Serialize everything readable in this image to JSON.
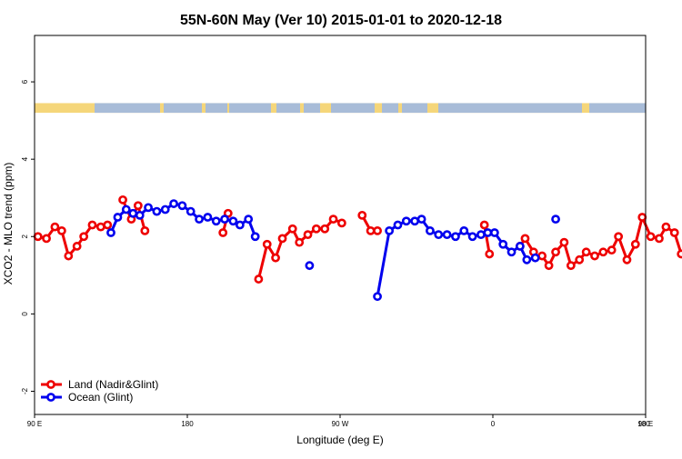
{
  "chart_data": {
    "type": "line",
    "title": "55N-60N May (Ver 10)   2015-01-01 to 2020-12-18",
    "xlabel": "Longitude (deg E)",
    "ylabel": "XCO2 - MLO trend (ppm)",
    "xlim": [
      90,
      450
    ],
    "ylim": [
      -2.6,
      7.2
    ],
    "x_ticks": [
      {
        "value": 90,
        "label": "90 E"
      },
      {
        "value": 180,
        "label": "180"
      },
      {
        "value": 270,
        "label": "90 W"
      },
      {
        "value": 360,
        "label": "0"
      },
      {
        "value": 450,
        "label": "90 E"
      }
    ],
    "x_ticks_top": [
      {
        "value": 450,
        "label": "180"
      }
    ],
    "y_ticks": [
      {
        "value": -2,
        "label": "-2"
      },
      {
        "value": 0,
        "label": "0"
      },
      {
        "value": 2,
        "label": "2"
      },
      {
        "value": 4,
        "label": "4"
      },
      {
        "value": 6,
        "label": "6"
      }
    ],
    "land_ocean_strip": {
      "y_range": [
        5.2,
        5.45
      ],
      "land_color": "#f5d67a",
      "ocean_color": "#a8bcd8"
    },
    "legend_position": "bottom-left",
    "grid": false,
    "series": [
      {
        "name": "Land (Nadir&Glint)",
        "color": "#ee0000",
        "points": [
          [
            92,
            2.0
          ],
          [
            97,
            1.95
          ],
          [
            102,
            2.25
          ],
          [
            106,
            2.15
          ],
          [
            110,
            1.5
          ],
          [
            115,
            1.75
          ],
          [
            119,
            2.0
          ],
          [
            124,
            2.3
          ],
          [
            129,
            2.25
          ],
          [
            133,
            2.3
          ],
          [
            null,
            null
          ],
          [
            142,
            2.95
          ],
          [
            147,
            2.45
          ],
          [
            151,
            2.8
          ],
          [
            155,
            2.15
          ],
          [
            null,
            null
          ],
          [
            201,
            2.1
          ],
          [
            204,
            2.6
          ],
          [
            null,
            null
          ],
          [
            222,
            0.9
          ],
          [
            227,
            1.8
          ],
          [
            232,
            1.45
          ],
          [
            236,
            1.95
          ],
          [
            242,
            2.2
          ],
          [
            246,
            1.85
          ],
          [
            251,
            2.05
          ],
          [
            256,
            2.2
          ],
          [
            261,
            2.2
          ],
          [
            266,
            2.45
          ],
          [
            271,
            2.35
          ],
          [
            null,
            null
          ],
          [
            283,
            2.55
          ],
          [
            288,
            2.15
          ],
          [
            292,
            2.15
          ],
          [
            null,
            null
          ],
          [
            355,
            2.3
          ],
          [
            358,
            1.55
          ],
          [
            null,
            null
          ],
          [
            376,
            1.75
          ],
          [
            379,
            1.95
          ],
          [
            384,
            1.6
          ],
          [
            null,
            null
          ],
          [
            389,
            1.5
          ],
          [
            393,
            1.25
          ],
          [
            397,
            1.6
          ],
          [
            402,
            1.85
          ],
          [
            406,
            1.25
          ],
          [
            411,
            1.4
          ],
          [
            415,
            1.6
          ],
          [
            420,
            1.5
          ],
          [
            425,
            1.6
          ],
          [
            430,
            1.65
          ],
          [
            434,
            2.0
          ],
          [
            439,
            1.4
          ],
          [
            444,
            1.8
          ],
          [
            448,
            2.5
          ],
          [
            453,
            2.0
          ],
          [
            458,
            1.95
          ],
          [
            462,
            2.25
          ],
          [
            467,
            2.1
          ],
          [
            471,
            1.55
          ],
          [
            476,
            1.75
          ],
          [
            480,
            2.0
          ],
          [
            485,
            2.25
          ],
          [
            490,
            2.25
          ],
          [
            494,
            2.35
          ],
          [
            null,
            null
          ],
          [
            504,
            2.95
          ],
          [
            508,
            2.45
          ],
          [
            513,
            2.8
          ],
          [
            517,
            2.15
          ]
        ]
      },
      {
        "name": "Ocean (Glint)",
        "color": "#0000ee",
        "points": [
          [
            135,
            2.1
          ],
          [
            139,
            2.5
          ],
          [
            144,
            2.7
          ],
          [
            148,
            2.6
          ],
          [
            152,
            2.55
          ],
          [
            157,
            2.75
          ],
          [
            162,
            2.65
          ],
          [
            167,
            2.7
          ],
          [
            172,
            2.85
          ],
          [
            177,
            2.8
          ],
          [
            182,
            2.65
          ],
          [
            187,
            2.45
          ],
          [
            192,
            2.5
          ],
          [
            197,
            2.4
          ],
          [
            202,
            2.45
          ],
          [
            207,
            2.4
          ],
          [
            211,
            2.3
          ],
          [
            216,
            2.45
          ],
          [
            220,
            2.0
          ],
          [
            null,
            null
          ],
          [
            252,
            1.25
          ],
          [
            null,
            null
          ],
          [
            292,
            0.45
          ],
          [
            299,
            2.15
          ],
          [
            304,
            2.3
          ],
          [
            309,
            2.4
          ],
          [
            314,
            2.4
          ],
          [
            318,
            2.45
          ],
          [
            323,
            2.15
          ],
          [
            328,
            2.05
          ],
          [
            333,
            2.05
          ],
          [
            338,
            2.0
          ],
          [
            343,
            2.15
          ],
          [
            348,
            2.0
          ],
          [
            353,
            2.05
          ],
          [
            357,
            2.1
          ],
          [
            361,
            2.1
          ],
          [
            366,
            1.8
          ],
          [
            371,
            1.6
          ],
          [
            376,
            1.75
          ],
          [
            380,
            1.4
          ],
          [
            385,
            1.45
          ],
          [
            null,
            null
          ],
          [
            397,
            2.45
          ],
          [
            null,
            null
          ],
          [
            496,
            2.15
          ],
          [
            501,
            2.5
          ],
          [
            506,
            2.7
          ],
          [
            511,
            2.6
          ],
          [
            516,
            2.55
          ],
          [
            521,
            2.75
          ],
          [
            526,
            2.65
          ],
          [
            531,
            2.7
          ],
          [
            535,
            2.85
          ]
        ]
      }
    ]
  }
}
